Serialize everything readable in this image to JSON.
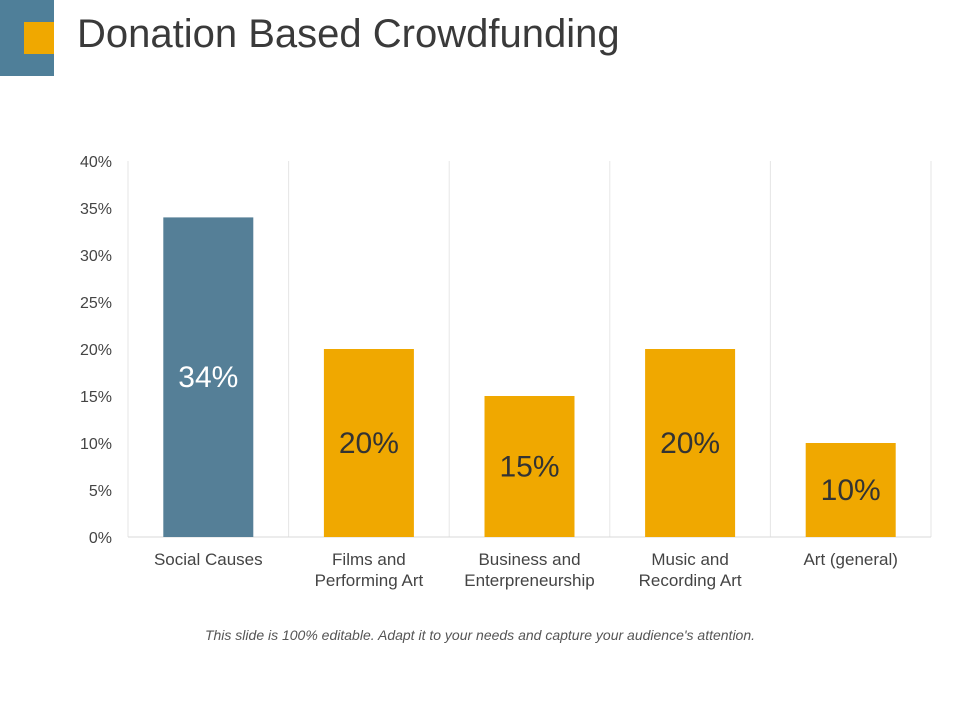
{
  "slide": {
    "title": "Donation Based Crowdfunding",
    "footnote": "This slide is 100% editable. Adapt it to your needs and capture your audience's attention."
  },
  "colors": {
    "accent_blue": "#4f7f99",
    "accent_orange": "#f0a800",
    "highlight_bar": "#557f97",
    "bar": "#f0a800",
    "grid": "#e6e6e6",
    "axis_text": "#444444"
  },
  "chart_data": {
    "type": "bar",
    "title": "",
    "xlabel": "",
    "ylabel": "",
    "categories": [
      [
        "Social Causes"
      ],
      [
        "Films and",
        "Performing Art"
      ],
      [
        "Business and",
        "Enterpreneurship"
      ],
      [
        "Music and",
        "Recording Art"
      ],
      [
        "Art (general)"
      ]
    ],
    "values": [
      34,
      20,
      15,
      20,
      10
    ],
    "data_labels": [
      "34%",
      "20%",
      "15%",
      "20%",
      "10%"
    ],
    "highlight_index": 0,
    "ylim": [
      0,
      40
    ],
    "yticks": [
      0,
      5,
      10,
      15,
      20,
      25,
      30,
      35,
      40
    ],
    "ytick_labels": [
      "0%",
      "5%",
      "10%",
      "15%",
      "20%",
      "25%",
      "30%",
      "35%",
      "40%"
    ],
    "grid": "vertical"
  }
}
